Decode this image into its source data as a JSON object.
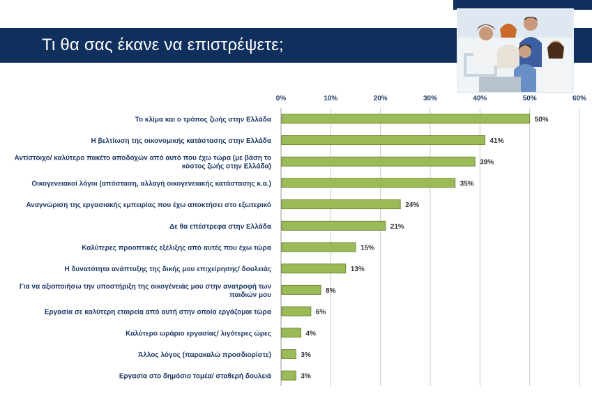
{
  "header": {
    "title": "Τι θα σας έκανε να επιστρέψετε;"
  },
  "colors": {
    "header_bg": "#0f2f5c",
    "bar_fill": "#9bbb59",
    "bar_stroke": "#6f8b32",
    "label_text": "#1f3864",
    "grid": "#c8c8c8"
  },
  "photo": {
    "icon": "office-team-photo"
  },
  "chart_data": {
    "type": "bar",
    "orientation": "horizontal",
    "xlim": [
      0,
      60
    ],
    "ticks": [
      "0%",
      "10%",
      "20%",
      "30%",
      "40%",
      "50%",
      "60%"
    ],
    "tick_values": [
      0,
      10,
      20,
      30,
      40,
      50,
      60
    ],
    "grid": true,
    "axis_position": "top",
    "categories": [
      [
        "Το κλίμα και ο τρόπος ζωής στην Ελλάδα"
      ],
      [
        "Η βελτίωση της οικονομικής κατάστασης στην Ελλάδα"
      ],
      [
        "Αντίστοιχο/ καλύτερο πακέτο αποδοχών από αυτό που έχω τώρα (με βάση το",
        "κόστος ζωής στην Ελλάδα)"
      ],
      [
        "Οικογενειακοί λόγοι (απόσταση, αλλαγή οικογενειακής κατάστασης κ.α.)"
      ],
      [
        "Αναγνώριση της εργασιακής εμπειρίας που έχω αποκτήσει στο εξωτερικό"
      ],
      [
        "Δε θα επέστρεφα στην Ελλάδα"
      ],
      [
        "Καλύτερες προοπτικές εξέλιξης από αυτές που έχω τώρα"
      ],
      [
        "Η δυνατότητα ανάπτυξης της δικής μου επιχείρησης/ δουλειάς"
      ],
      [
        "Για να αξιοποιήσω την υποστήριξη της οικογένειάς μου στην ανατροφή των",
        "παιδιών μου"
      ],
      [
        "Εργασία σε καλύτερη εταιρεία από αυτή στην οποία εργάζομαι τώρα"
      ],
      [
        "Καλύτερο ωράριο εργασίας/ λιγότερες ώρες"
      ],
      [
        "Άλλος λόγος (παρακαλώ προσδιορίστε)"
      ],
      [
        "Εργασία στο δημόσιο τομέα/ σταθερή δουλειά"
      ]
    ],
    "values": [
      50,
      41,
      39,
      35,
      24,
      21,
      15,
      13,
      8,
      6,
      4,
      3,
      3
    ],
    "value_labels": [
      "50%",
      "41%",
      "39%",
      "35%",
      "24%",
      "21%",
      "15%",
      "13%",
      "8%",
      "6%",
      "4%",
      "3%",
      "3%"
    ]
  }
}
